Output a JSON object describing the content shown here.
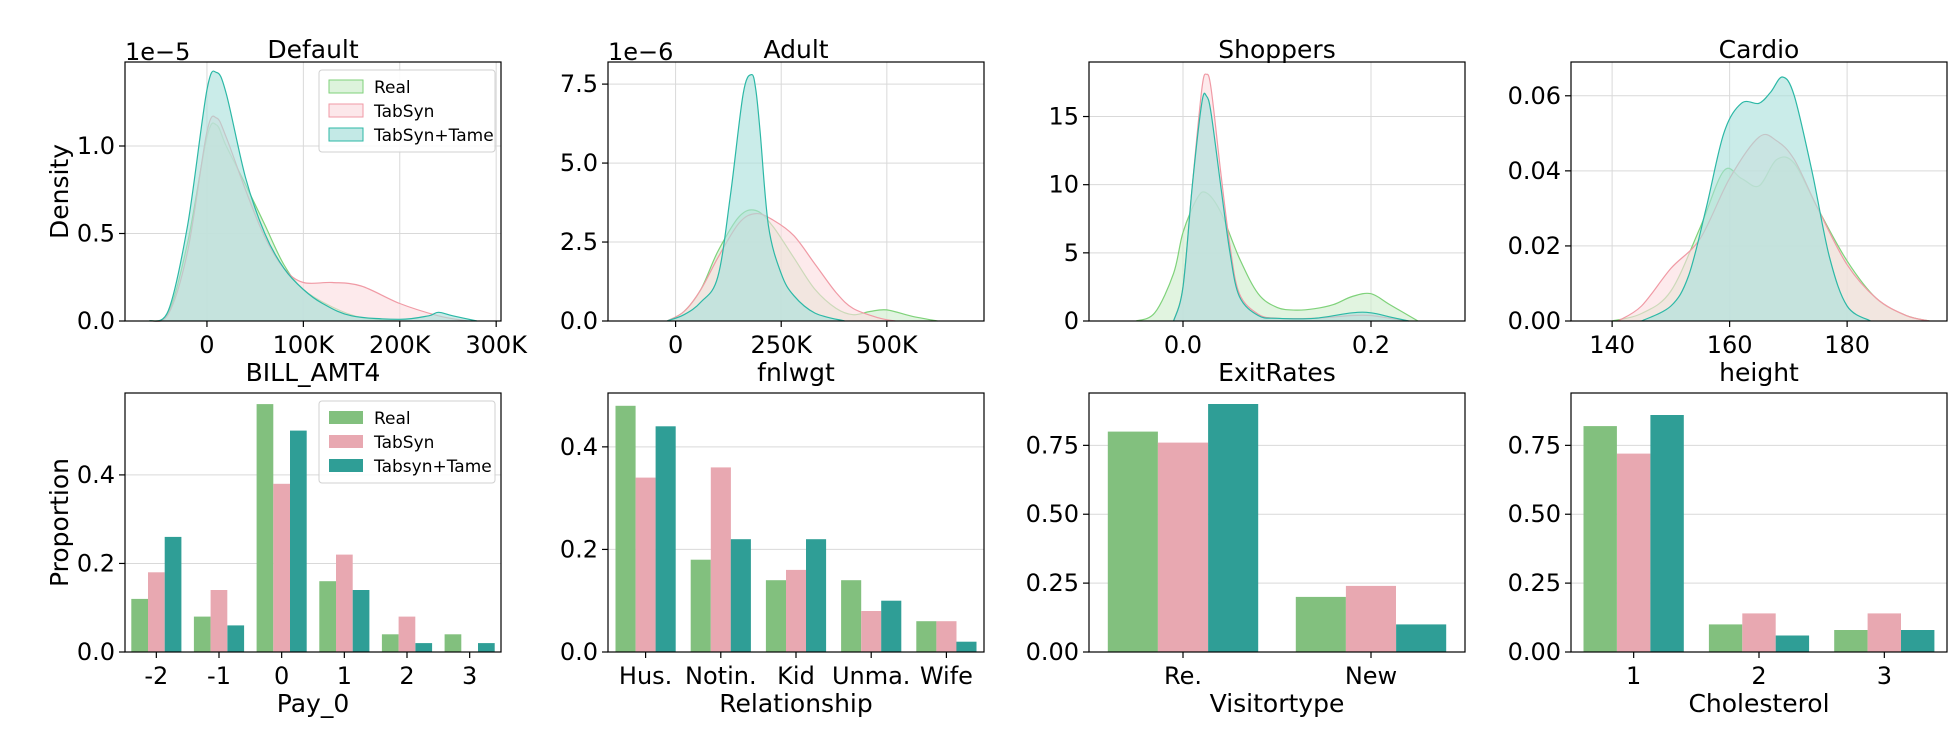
{
  "colors": {
    "real": "#82c07e",
    "tabsyn": "#e8a8b1",
    "tame": "#2f9e96",
    "kde_real_fill": "#cfeecd",
    "kde_real_line": "#7fd27a",
    "kde_tabsyn_fill": "#fbdde1",
    "kde_tabsyn_line": "#f09aa5",
    "kde_tame_fill": "#a9e0dc",
    "kde_tame_line": "#2cb8a6",
    "grid": "#d9d9d9"
  },
  "chart_data": [
    {
      "type": "area",
      "title": "Default",
      "xlabel": "BILL_AMT4",
      "ylabel": "Density",
      "scale_text": "1e−5",
      "xlim": [
        -85000,
        305000
      ],
      "ylim": [
        0,
        1.48
      ],
      "xticks": [
        0,
        100000,
        200000,
        300000
      ],
      "xticklabels": [
        "0",
        "100K",
        "200K",
        "300K"
      ],
      "yticks": [
        0,
        0.5,
        1.0
      ],
      "yticklabels": [
        "0.0",
        "0.5",
        "1.0"
      ],
      "grid": true,
      "legend": {
        "placement": "top-right",
        "entries": [
          "Real",
          "TabSyn",
          "TabSyn+Tame"
        ]
      },
      "series": [
        {
          "name": "Real",
          "key": "real",
          "x": [
            -60000,
            -40000,
            -20000,
            0,
            10000,
            20000,
            40000,
            60000,
            80000,
            100000,
            130000,
            160000,
            200000
          ],
          "y": [
            0,
            0.05,
            0.45,
            1.05,
            1.12,
            1.0,
            0.78,
            0.55,
            0.32,
            0.18,
            0.08,
            0.02,
            0
          ]
        },
        {
          "name": "TabSyn",
          "key": "tabsyn",
          "x": [
            -60000,
            -40000,
            -20000,
            0,
            10000,
            20000,
            40000,
            60000,
            80000,
            100000,
            130000,
            160000,
            200000,
            240000,
            270000
          ],
          "y": [
            0,
            0.04,
            0.4,
            1.08,
            1.16,
            1.05,
            0.75,
            0.48,
            0.3,
            0.22,
            0.22,
            0.2,
            0.1,
            0.03,
            0
          ]
        },
        {
          "name": "TabSyn+Tame",
          "key": "tame",
          "x": [
            -60000,
            -40000,
            -20000,
            0,
            10000,
            20000,
            40000,
            60000,
            80000,
            100000,
            120000,
            150000,
            200000,
            230000,
            240000,
            255000,
            280000
          ],
          "y": [
            0,
            0.06,
            0.55,
            1.32,
            1.42,
            1.3,
            0.82,
            0.5,
            0.3,
            0.18,
            0.1,
            0.03,
            0.01,
            0.03,
            0.05,
            0.03,
            0
          ]
        }
      ]
    },
    {
      "type": "area",
      "title": "Adult",
      "xlabel": "fnlwgt",
      "ylabel": "",
      "scale_text": "1e−6",
      "xlim": [
        -160000,
        730000
      ],
      "ylim": [
        0,
        8.2
      ],
      "xticks": [
        0,
        250000,
        500000
      ],
      "xticklabels": [
        "0",
        "250K",
        "500K"
      ],
      "yticks": [
        0,
        2.5,
        5.0,
        7.5
      ],
      "yticklabels": [
        "0.0",
        "2.5",
        "5.0",
        "7.5"
      ],
      "grid": true,
      "series": [
        {
          "name": "Real",
          "key": "real",
          "x": [
            -20000,
            20000,
            60000,
            100000,
            150000,
            190000,
            230000,
            280000,
            330000,
            380000,
            420000,
            460000,
            500000,
            560000,
            620000
          ],
          "y": [
            0,
            0.3,
            1.0,
            2.2,
            3.3,
            3.5,
            3.0,
            2.0,
            1.0,
            0.4,
            0.2,
            0.3,
            0.35,
            0.15,
            0
          ]
        },
        {
          "name": "TabSyn",
          "key": "tabsyn",
          "x": [
            -20000,
            20000,
            60000,
            100000,
            150000,
            190000,
            230000,
            280000,
            330000,
            380000,
            420000,
            480000,
            520000
          ],
          "y": [
            0,
            0.3,
            1.0,
            2.0,
            3.1,
            3.4,
            3.2,
            2.7,
            1.8,
            0.9,
            0.4,
            0.1,
            0
          ]
        },
        {
          "name": "TabSyn+Tame",
          "key": "tame",
          "x": [
            -20000,
            20000,
            60000,
            100000,
            130000,
            160000,
            180000,
            190000,
            200000,
            220000,
            250000,
            280000,
            330000,
            400000
          ],
          "y": [
            0,
            0.2,
            0.6,
            1.4,
            4.0,
            7.2,
            7.8,
            7.3,
            6.0,
            3.0,
            1.5,
            0.8,
            0.25,
            0
          ]
        }
      ]
    },
    {
      "type": "area",
      "title": "Shoppers",
      "xlabel": "ExitRates",
      "ylabel": "",
      "scale_text": "",
      "xlim": [
        -0.1,
        0.3
      ],
      "ylim": [
        0,
        19
      ],
      "xticks": [
        0.0,
        0.2
      ],
      "xticklabels": [
        "0.0",
        "0.2"
      ],
      "yticks": [
        0,
        5,
        10,
        15
      ],
      "yticklabels": [
        "0",
        "5",
        "10",
        "15"
      ],
      "grid": true,
      "series": [
        {
          "name": "Real",
          "key": "real",
          "x": [
            -0.05,
            -0.03,
            -0.01,
            0.0,
            0.015,
            0.025,
            0.04,
            0.06,
            0.08,
            0.1,
            0.12,
            0.14,
            0.16,
            0.18,
            0.2,
            0.22,
            0.25
          ],
          "y": [
            0,
            0.6,
            3.5,
            6.5,
            9.0,
            9.4,
            8.0,
            4.6,
            2.0,
            1.0,
            0.8,
            0.9,
            1.2,
            1.8,
            2.0,
            1.2,
            0
          ]
        },
        {
          "name": "TabSyn",
          "key": "tabsyn",
          "x": [
            -0.01,
            0.0,
            0.01,
            0.02,
            0.025,
            0.03,
            0.04,
            0.05,
            0.06,
            0.08,
            0.1,
            0.14,
            0.18,
            0.2,
            0.22,
            0.24
          ],
          "y": [
            0,
            2.5,
            10.0,
            17.0,
            18.1,
            17.0,
            11.0,
            5.5,
            2.0,
            0.5,
            0.2,
            0.2,
            0.4,
            0.4,
            0.2,
            0
          ]
        },
        {
          "name": "TabSyn+Tame",
          "key": "tame",
          "x": [
            -0.01,
            0.0,
            0.01,
            0.02,
            0.025,
            0.03,
            0.04,
            0.05,
            0.06,
            0.08,
            0.1,
            0.14,
            0.18,
            0.2,
            0.22,
            0.24
          ],
          "y": [
            0,
            2.5,
            10.0,
            16.0,
            16.5,
            15.2,
            10.0,
            5.0,
            1.8,
            0.4,
            0.2,
            0.2,
            0.6,
            0.6,
            0.3,
            0
          ]
        }
      ]
    },
    {
      "type": "area",
      "title": "Cardio",
      "xlabel": "height",
      "ylabel": "",
      "scale_text": "",
      "xlim": [
        133,
        197
      ],
      "ylim": [
        0,
        0.069
      ],
      "xticks": [
        140,
        160,
        180
      ],
      "xticklabels": [
        "140",
        "160",
        "180"
      ],
      "yticks": [
        0.0,
        0.02,
        0.04,
        0.06
      ],
      "yticklabels": [
        "0.00",
        "0.02",
        "0.04",
        "0.06"
      ],
      "grid": true,
      "series": [
        {
          "name": "Real",
          "key": "real",
          "x": [
            140,
            145,
            150,
            155,
            159,
            162,
            165,
            168,
            171,
            175,
            180,
            185,
            190,
            194
          ],
          "y": [
            0,
            0.002,
            0.008,
            0.025,
            0.04,
            0.038,
            0.036,
            0.043,
            0.042,
            0.03,
            0.016,
            0.006,
            0.0015,
            0
          ]
        },
        {
          "name": "TabSyn",
          "key": "tabsyn",
          "x": [
            141,
            145,
            150,
            155,
            160,
            165,
            168,
            171,
            175,
            180,
            185,
            190,
            194
          ],
          "y": [
            0,
            0.004,
            0.014,
            0.022,
            0.038,
            0.049,
            0.048,
            0.043,
            0.03,
            0.015,
            0.006,
            0.0015,
            0
          ]
        },
        {
          "name": "TabSyn+Tame",
          "key": "tame",
          "x": [
            145,
            150,
            153,
            156,
            159,
            162,
            165,
            167,
            169,
            171,
            174,
            177,
            180,
            184
          ],
          "y": [
            0,
            0.004,
            0.012,
            0.03,
            0.05,
            0.058,
            0.058,
            0.061,
            0.065,
            0.06,
            0.04,
            0.017,
            0.004,
            0
          ]
        }
      ]
    },
    {
      "type": "bar",
      "title": "",
      "xlabel": "Pay_0",
      "ylabel": "Proportion",
      "categories": [
        "-2",
        "-1",
        "0",
        "1",
        "2",
        "3"
      ],
      "ylim": [
        0,
        0.585
      ],
      "yticks": [
        0.0,
        0.2,
        0.4
      ],
      "yticklabels": [
        "0.0",
        "0.2",
        "0.4"
      ],
      "grid": true,
      "legend": {
        "placement": "top-right",
        "entries": [
          "Real",
          "TabSyn",
          "Tabsyn+Tame"
        ]
      },
      "series": [
        {
          "name": "Real",
          "key": "real",
          "values": [
            0.12,
            0.08,
            0.56,
            0.16,
            0.04,
            0.04
          ]
        },
        {
          "name": "TabSyn",
          "key": "tabsyn",
          "values": [
            0.18,
            0.14,
            0.38,
            0.22,
            0.08,
            0.0
          ]
        },
        {
          "name": "Tabsyn+Tame",
          "key": "tame",
          "values": [
            0.26,
            0.06,
            0.5,
            0.14,
            0.02,
            0.02
          ]
        }
      ]
    },
    {
      "type": "bar",
      "title": "",
      "xlabel": "Relationship",
      "ylabel": "",
      "categories": [
        "Hus.",
        "Notin.",
        "Kid",
        "Unma.",
        "Wife"
      ],
      "ylim": [
        0,
        0.505
      ],
      "yticks": [
        0.0,
        0.2,
        0.4
      ],
      "yticklabels": [
        "0.0",
        "0.2",
        "0.4"
      ],
      "grid": true,
      "series": [
        {
          "name": "Real",
          "key": "real",
          "values": [
            0.48,
            0.18,
            0.14,
            0.14,
            0.06
          ]
        },
        {
          "name": "TabSyn",
          "key": "tabsyn",
          "values": [
            0.34,
            0.36,
            0.16,
            0.08,
            0.06
          ]
        },
        {
          "name": "Tabsyn+Tame",
          "key": "tame",
          "values": [
            0.44,
            0.22,
            0.22,
            0.1,
            0.02
          ]
        }
      ]
    },
    {
      "type": "bar",
      "title": "",
      "xlabel": "Visitortype",
      "ylabel": "",
      "categories": [
        "Re.",
        "New"
      ],
      "ylim": [
        0,
        0.94
      ],
      "yticks": [
        0.0,
        0.25,
        0.5,
        0.75
      ],
      "yticklabels": [
        "0.00",
        "0.25",
        "0.50",
        "0.75"
      ],
      "grid": true,
      "series": [
        {
          "name": "Real",
          "key": "real",
          "values": [
            0.8,
            0.2
          ]
        },
        {
          "name": "TabSyn",
          "key": "tabsyn",
          "values": [
            0.76,
            0.24
          ]
        },
        {
          "name": "Tabsyn+Tame",
          "key": "tame",
          "values": [
            0.9,
            0.1
          ]
        }
      ]
    },
    {
      "type": "bar",
      "title": "",
      "xlabel": "Cholesterol",
      "ylabel": "",
      "categories": [
        "1",
        "2",
        "3"
      ],
      "ylim": [
        0,
        0.94
      ],
      "yticks": [
        0.0,
        0.25,
        0.5,
        0.75
      ],
      "yticklabels": [
        "0.00",
        "0.25",
        "0.50",
        "0.75"
      ],
      "grid": true,
      "series": [
        {
          "name": "Real",
          "key": "real",
          "values": [
            0.82,
            0.1,
            0.08
          ]
        },
        {
          "name": "TabSyn",
          "key": "tabsyn",
          "values": [
            0.72,
            0.14,
            0.14
          ]
        },
        {
          "name": "Tabsyn+Tame",
          "key": "tame",
          "values": [
            0.86,
            0.06,
            0.08
          ]
        }
      ]
    }
  ]
}
